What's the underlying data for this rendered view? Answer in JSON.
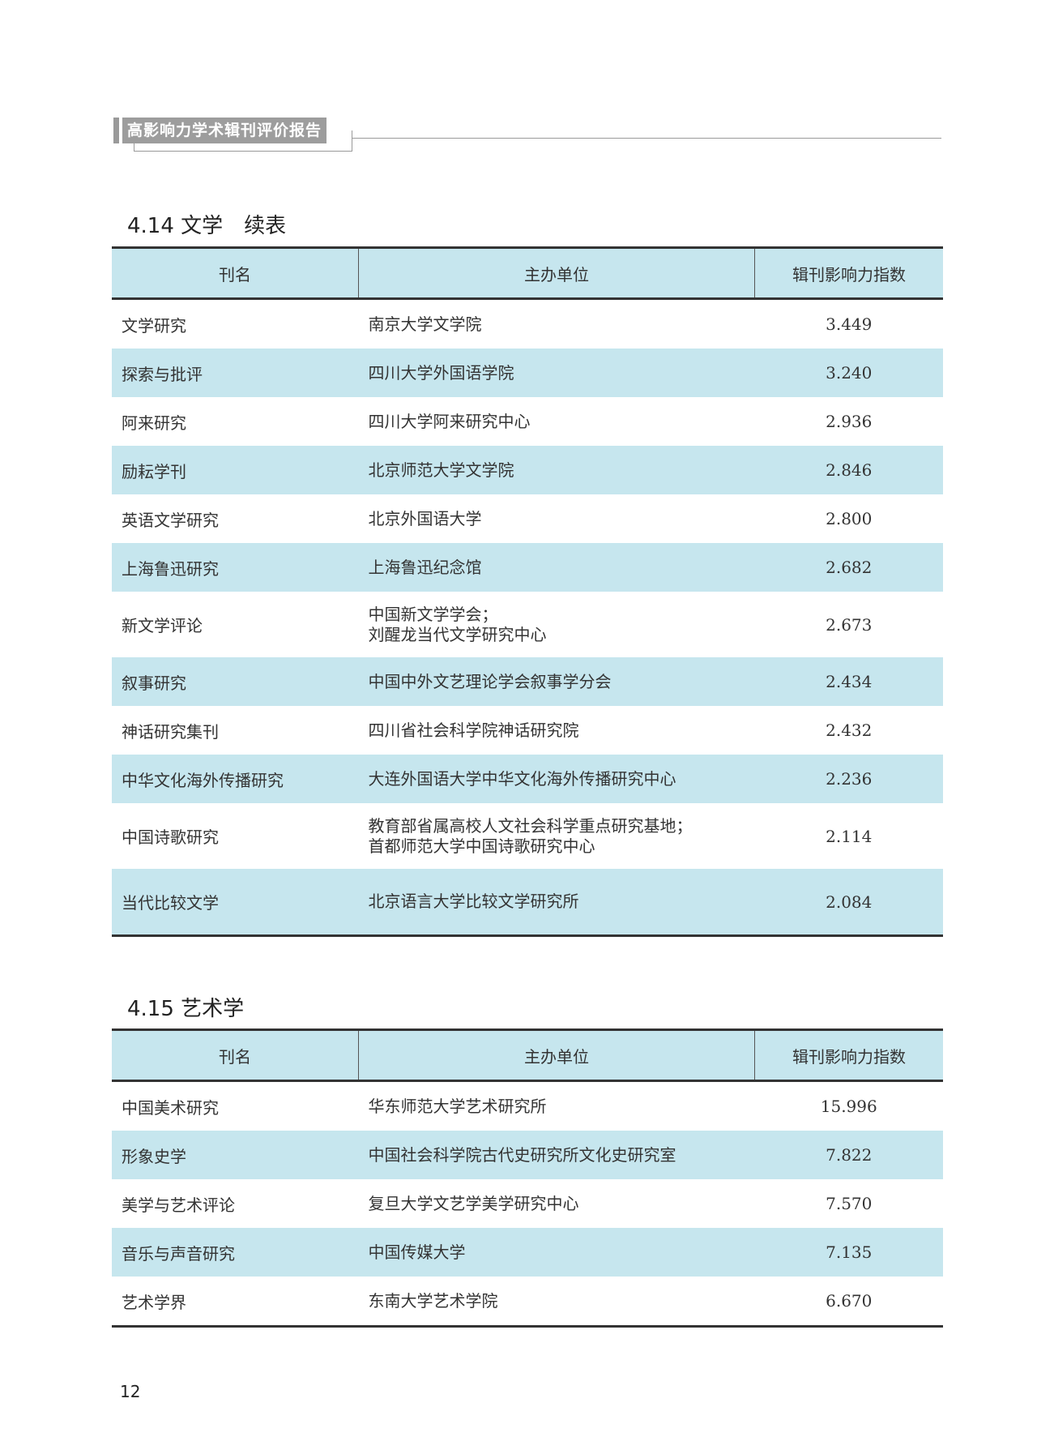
{
  "running_head": "高影响力学术辑刊评价报告",
  "sections": [
    {
      "title": "4.14 文学　续表",
      "columns": [
        "刊名",
        "主办单位",
        "辑刊影响力指数"
      ],
      "rows": [
        {
          "name": "文学研究",
          "units": [
            "南京大学文学院"
          ],
          "index": "3.449"
        },
        {
          "name": "探索与批评",
          "units": [
            "四川大学外国语学院"
          ],
          "index": "3.240"
        },
        {
          "name": "阿来研究",
          "units": [
            "四川大学阿来研究中心"
          ],
          "index": "2.936"
        },
        {
          "name": "励耘学刊",
          "units": [
            "北京师范大学文学院"
          ],
          "index": "2.846"
        },
        {
          "name": "英语文学研究",
          "units": [
            "北京外国语大学"
          ],
          "index": "2.800"
        },
        {
          "name": "上海鲁迅研究",
          "units": [
            "上海鲁迅纪念馆"
          ],
          "index": "2.682"
        },
        {
          "name": "新文学评论",
          "units": [
            "中国新文学学会；",
            "刘醒龙当代文学研究中心"
          ],
          "index": "2.673"
        },
        {
          "name": "叙事研究",
          "units": [
            "中国中外文艺理论学会叙事学分会"
          ],
          "index": "2.434"
        },
        {
          "name": "神话研究集刊",
          "units": [
            "四川省社会科学院神话研究院"
          ],
          "index": "2.432"
        },
        {
          "name": "中华文化海外传播研究",
          "units": [
            "大连外国语大学中华文化海外传播研究中心"
          ],
          "index": "2.236"
        },
        {
          "name": "中国诗歌研究",
          "units": [
            "教育部省属高校人文社会科学重点研究基地；",
            "首都师范大学中国诗歌研究中心"
          ],
          "index": "2.114"
        },
        {
          "name": "当代比较文学",
          "units": [
            "北京语言大学比较文学研究所"
          ],
          "index": "2.084"
        }
      ]
    },
    {
      "title": "4.15 艺术学",
      "columns": [
        "刊名",
        "主办单位",
        "辑刊影响力指数"
      ],
      "rows": [
        {
          "name": "中国美术研究",
          "units": [
            "华东师范大学艺术研究所"
          ],
          "index": "15.996"
        },
        {
          "name": "形象史学",
          "units": [
            "中国社会科学院古代史研究所文化史研究室"
          ],
          "index": "7.822"
        },
        {
          "name": "美学与艺术评论",
          "units": [
            "复旦大学文艺学美学研究中心"
          ],
          "index": "7.570"
        },
        {
          "name": "音乐与声音研究",
          "units": [
            "中国传媒大学"
          ],
          "index": "7.135"
        },
        {
          "name": "艺术学界",
          "units": [
            "东南大学艺术学院"
          ],
          "index": "6.670"
        }
      ]
    }
  ],
  "page_number": "12",
  "colors": {
    "row_highlight": "#c6e6ee",
    "running_head_bg": "#9d9d9d"
  }
}
